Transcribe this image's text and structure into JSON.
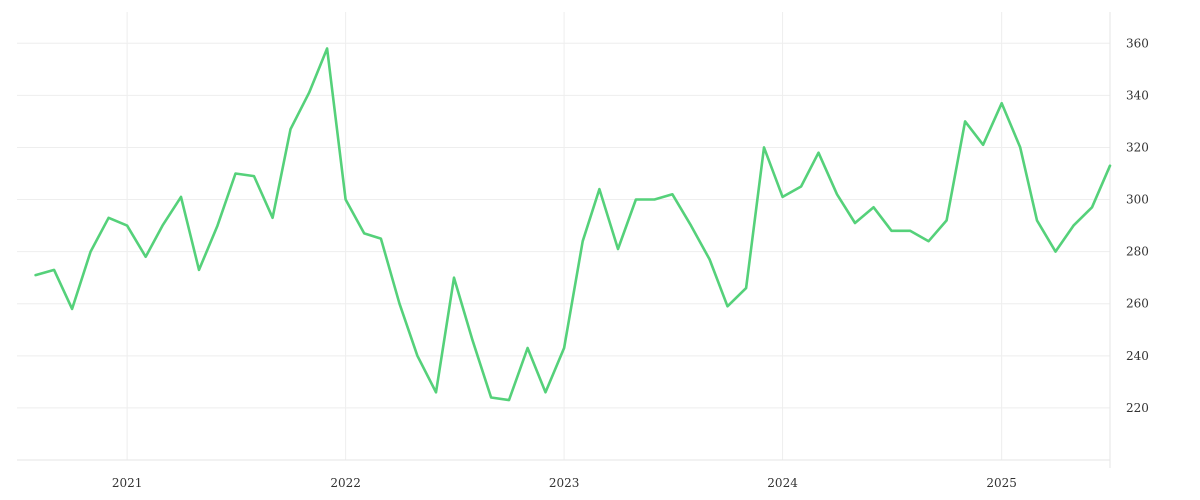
{
  "chart_data": {
    "type": "line",
    "title": "",
    "xlabel": "",
    "ylabel": "",
    "grid": true,
    "legend": "none",
    "line_color": "#55d17a",
    "xlim": [
      "2020-07-01",
      "2025-07-01"
    ],
    "ylim": [
      200,
      372
    ],
    "x_ticks": [
      "2021",
      "2022",
      "2023",
      "2024",
      "2025"
    ],
    "y_ticks": [
      220,
      240,
      260,
      280,
      300,
      320,
      340,
      360
    ],
    "series": [
      {
        "x": [
          "2020-08",
          "2020-09",
          "2020-10",
          "2020-11",
          "2020-12",
          "2021-01",
          "2021-02",
          "2021-03",
          "2021-04",
          "2021-05",
          "2021-06",
          "2021-07",
          "2021-08",
          "2021-09",
          "2021-10",
          "2021-11",
          "2021-12",
          "2022-01",
          "2022-02",
          "2022-03",
          "2022-04",
          "2022-05",
          "2022-06",
          "2022-07",
          "2022-08",
          "2022-09",
          "2022-10",
          "2022-11",
          "2022-12",
          "2023-01",
          "2023-02",
          "2023-03",
          "2023-04",
          "2023-05",
          "2023-06",
          "2023-07",
          "2023-08",
          "2023-09",
          "2023-10",
          "2023-11",
          "2023-12",
          "2024-01",
          "2024-02",
          "2024-03",
          "2024-04",
          "2024-05",
          "2024-06",
          "2024-07",
          "2024-08",
          "2024-09",
          "2024-10",
          "2024-11",
          "2024-12",
          "2025-01",
          "2025-02",
          "2025-03",
          "2025-04",
          "2025-05",
          "2025-06",
          "2025-07"
        ],
        "values": [
          271,
          273,
          258,
          280,
          293,
          290,
          278,
          290,
          301,
          273,
          290,
          310,
          309,
          293,
          327,
          341,
          358,
          300,
          287,
          285,
          260,
          240,
          226,
          270,
          246,
          224,
          223,
          243,
          226,
          243,
          284,
          304,
          281,
          300,
          300,
          302,
          290,
          277,
          259,
          266,
          320,
          301,
          305,
          318,
          302,
          291,
          297,
          288,
          288,
          284,
          292,
          330,
          321,
          337,
          320,
          292,
          280,
          290,
          297,
          313
        ]
      }
    ]
  }
}
